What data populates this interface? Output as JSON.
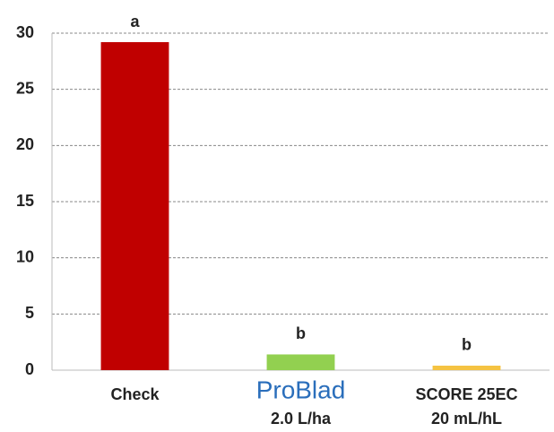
{
  "chart_data": {
    "type": "bar",
    "categories": [
      "Check",
      "ProBlad",
      "SCORE 25EC"
    ],
    "category_sublabels": [
      null,
      "2.0 L/ha",
      "20 mL/hL"
    ],
    "values": [
      29.2,
      1.4,
      0.4
    ],
    "colors": [
      "#c00000",
      "#92d050",
      "#f5c342"
    ],
    "annotations": [
      "a",
      "b",
      "b"
    ],
    "ylim": [
      0,
      30
    ],
    "yticks": [
      0,
      5,
      10,
      15,
      20,
      25,
      30
    ],
    "grid": true
  }
}
